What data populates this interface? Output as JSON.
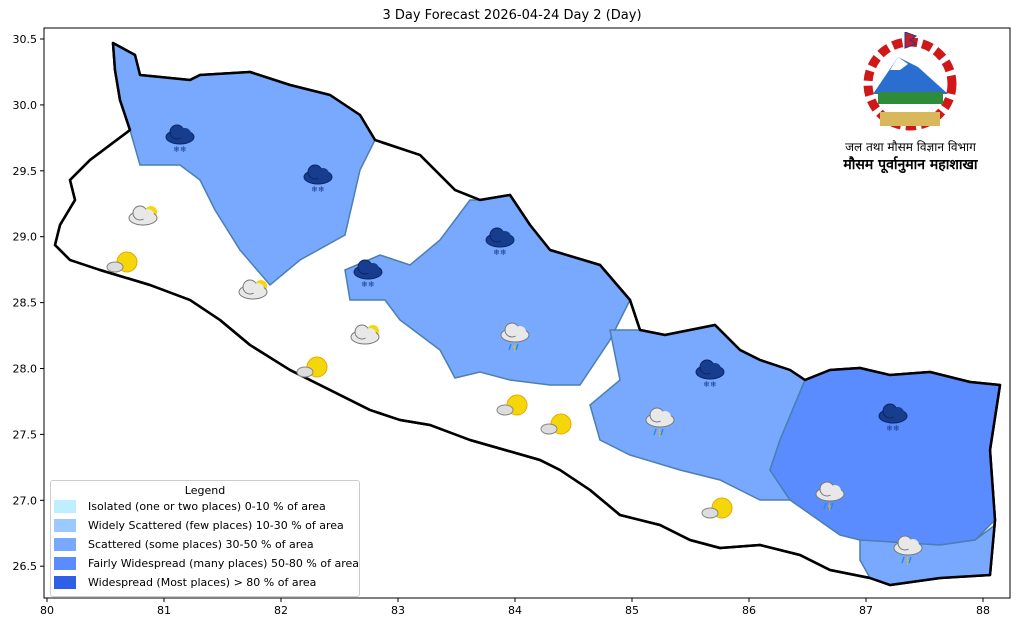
{
  "title": "3 Day Forecast 2026-04-24 Day 2 (Day)",
  "axes": {
    "x_ticks": [
      "80",
      "81",
      "82",
      "83",
      "84",
      "85",
      "86",
      "87",
      "88"
    ],
    "y_ticks": [
      "30.5",
      "30.0",
      "29.5",
      "29.0",
      "28.5",
      "28.0",
      "27.5",
      "27.0",
      "26.5"
    ]
  },
  "legend": {
    "title": "Legend",
    "items": [
      {
        "label": "Isolated (one or two places)  0-10 % of area",
        "color": "#bfefff"
      },
      {
        "label": "Widely Scattered (few places)  10-30 % of area",
        "color": "#9cc9ff"
      },
      {
        "label": "Scattered (some places)  30-50 % of area",
        "color": "#78a9ff"
      },
      {
        "label": "Fairly Widespread (many places)  50-80 % of area",
        "color": "#5a8bff"
      },
      {
        "label": "Widespread (Most places) > 80 % of area",
        "color": "#2f5fe8"
      }
    ]
  },
  "logo": {
    "line1": "जल तथा मौसम विज्ञान विभाग",
    "line2": "मौसम पूर्वानुमान महाशाखा",
    "emblem": "Nepal government emblem"
  },
  "icons": [
    "cloud-snow-icon",
    "cloud-sun-icon",
    "sun-cloud-icon",
    "cloud-rain-icon"
  ]
}
